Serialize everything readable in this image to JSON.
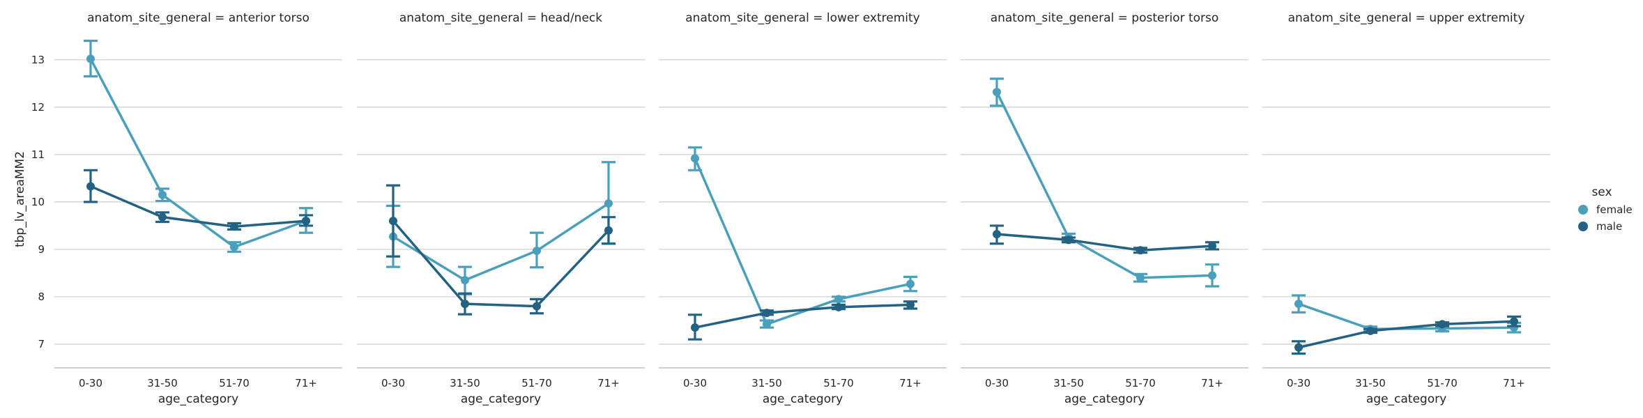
{
  "chart_data": {
    "type": "line",
    "subtype": "point-plot with error bars, faceted",
    "ylabel": "tbp_lv_areaMM2",
    "xlabel": "age_category",
    "categories": [
      "0-30",
      "31-50",
      "51-70",
      "71+"
    ],
    "ylim": [
      6.5,
      13.6
    ],
    "yticks": [
      7,
      8,
      9,
      10,
      11,
      12,
      13
    ],
    "grid": "horizontal",
    "legend": {
      "title": "sex",
      "placement": "right",
      "entries": [
        {
          "name": "female",
          "color": "#4a9fba"
        },
        {
          "name": "male",
          "color": "#246283"
        }
      ]
    },
    "panels": [
      {
        "title": "anatom_site_general = anterior torso",
        "series": [
          {
            "name": "female",
            "values": [
              13.02,
              10.15,
              9.05,
              9.6
            ],
            "ci_low": [
              12.65,
              10.02,
              8.95,
              9.35
            ],
            "ci_high": [
              13.4,
              10.28,
              9.15,
              9.87
            ]
          },
          {
            "name": "male",
            "values": [
              10.33,
              9.68,
              9.48,
              9.6
            ],
            "ci_low": [
              10.0,
              9.58,
              9.42,
              9.5
            ],
            "ci_high": [
              10.67,
              9.78,
              9.55,
              9.72
            ]
          }
        ]
      },
      {
        "title": "anatom_site_general = head/neck",
        "series": [
          {
            "name": "female",
            "values": [
              9.27,
              8.35,
              8.97,
              9.97
            ],
            "ci_low": [
              8.63,
              8.05,
              8.62,
              9.12
            ],
            "ci_high": [
              9.92,
              8.63,
              9.35,
              10.84
            ]
          },
          {
            "name": "male",
            "values": [
              9.6,
              7.85,
              7.8,
              9.4
            ],
            "ci_low": [
              8.85,
              7.63,
              7.65,
              9.12
            ],
            "ci_high": [
              10.35,
              8.07,
              7.95,
              9.68
            ]
          }
        ]
      },
      {
        "title": "anatom_site_general = lower extremity",
        "series": [
          {
            "name": "female",
            "values": [
              10.92,
              7.42,
              7.95,
              8.27
            ],
            "ci_low": [
              10.67,
              7.35,
              7.9,
              8.12
            ],
            "ci_high": [
              11.15,
              7.5,
              8.0,
              8.42
            ]
          },
          {
            "name": "male",
            "values": [
              7.35,
              7.66,
              7.78,
              7.83
            ],
            "ci_low": [
              7.1,
              7.62,
              7.74,
              7.75
            ],
            "ci_high": [
              7.62,
              7.71,
              7.83,
              7.9
            ]
          }
        ]
      },
      {
        "title": "anatom_site_general = posterior torso",
        "series": [
          {
            "name": "female",
            "values": [
              12.32,
              9.25,
              8.4,
              8.45
            ],
            "ci_low": [
              12.03,
              9.17,
              8.32,
              8.22
            ],
            "ci_high": [
              12.6,
              9.33,
              8.48,
              8.68
            ]
          },
          {
            "name": "male",
            "values": [
              9.32,
              9.2,
              8.98,
              9.07
            ],
            "ci_low": [
              9.12,
              9.15,
              8.93,
              9.0
            ],
            "ci_high": [
              9.5,
              9.25,
              9.03,
              9.15
            ]
          }
        ]
      },
      {
        "title": "anatom_site_general = upper extremity",
        "series": [
          {
            "name": "female",
            "values": [
              7.85,
              7.32,
              7.33,
              7.35
            ],
            "ci_low": [
              7.67,
              7.27,
              7.27,
              7.25
            ],
            "ci_high": [
              8.03,
              7.37,
              7.39,
              7.45
            ]
          },
          {
            "name": "male",
            "values": [
              6.93,
              7.28,
              7.42,
              7.48
            ],
            "ci_low": [
              6.8,
              7.24,
              7.38,
              7.38
            ],
            "ci_high": [
              7.06,
              7.32,
              7.46,
              7.58
            ]
          }
        ]
      }
    ]
  }
}
